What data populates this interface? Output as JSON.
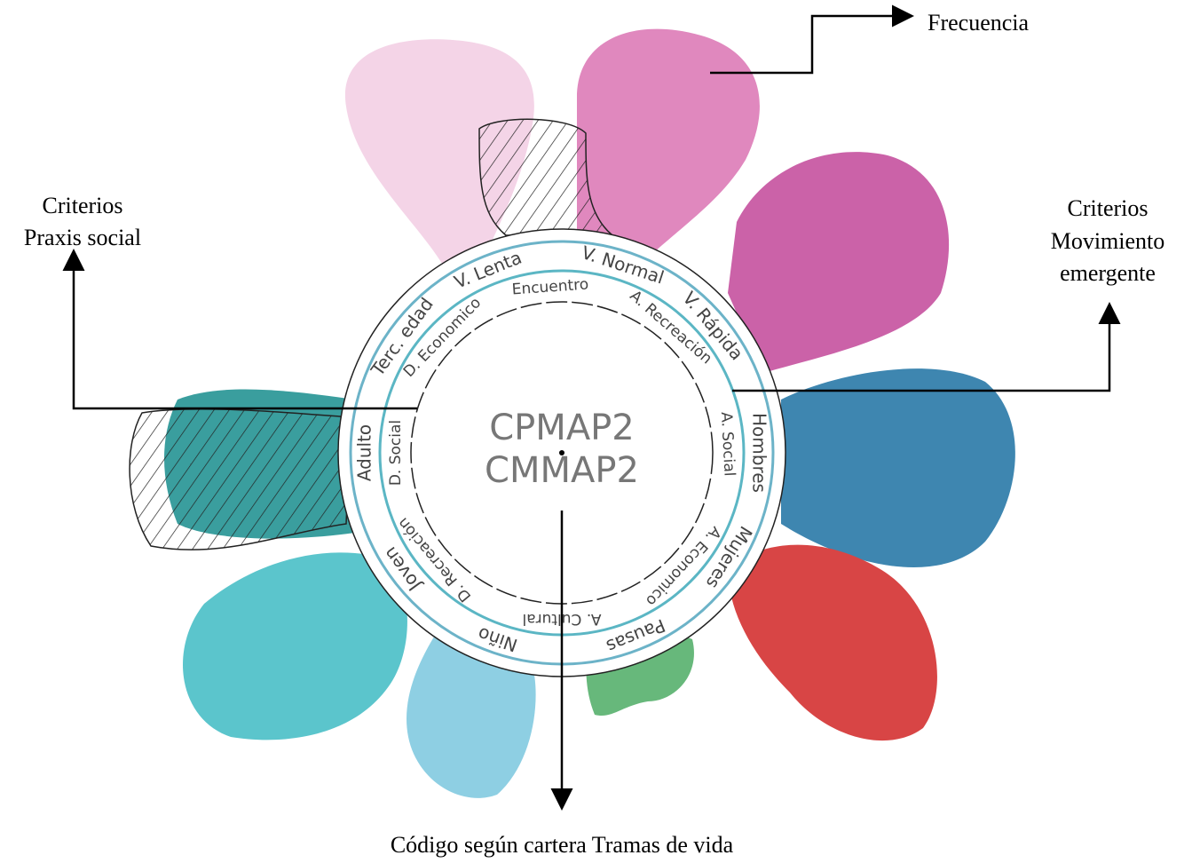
{
  "annotations": {
    "frequency": "Frecuencia",
    "praxis": [
      "Criterios",
      "Praxis social"
    ],
    "movement": [
      "Criterios",
      "Movimiento",
      "emergente"
    ],
    "code": "Código según cartera Tramas de vida"
  },
  "center": [
    "CPMAP2",
    "CMMAP2"
  ],
  "outer_ring": [
    "V. Lenta",
    "V. Normal",
    "V. Rápida",
    "Hombres",
    "Mujeres",
    "Pausas",
    "Niño",
    "Joven",
    "Adulto",
    "Terc. edad"
  ],
  "inner_ring": [
    "Encuentro",
    "A. Recreación",
    "A. Social",
    "A. Economico",
    "A. Cultural",
    "D. Recreación",
    "D. Social",
    "D. Economico"
  ]
}
